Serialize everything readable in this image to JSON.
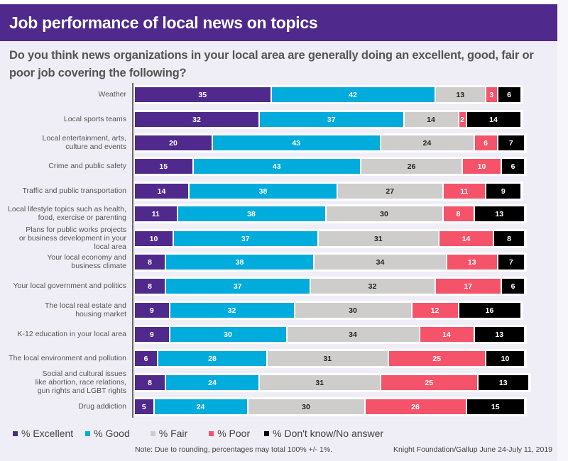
{
  "header": {
    "title": "Job performance of local news on topics"
  },
  "subtitle": "Do you think news organizations in your local area are generally doing an excellent, good, fair or poor job covering the following?",
  "chart_data": {
    "type": "bar",
    "orientation": "horizontal",
    "stacked": true,
    "categories": [
      "Weather",
      "Local sports teams",
      "Local entertainment, arts, culture and events",
      "Crime and public safety",
      "Traffic and public transportation",
      "Local lifestyle topics such as health, food, exercise or parenting",
      "Plans for public works projects or business development in your local area",
      "Your local economy and business climate",
      "Your local government and politics",
      "The local real estate and housing market",
      "K-12 education in your local area",
      "The local environment and pollution",
      "Social and cultural issues like abortion, race relations, gun rights and LGBT rights",
      "Drug addiction"
    ],
    "category_lines": [
      [
        "Weather"
      ],
      [
        "Local sports teams"
      ],
      [
        "Local entertainment, arts,",
        "culture and events"
      ],
      [
        "Crime and public safety"
      ],
      [
        "Traffic and public transportation"
      ],
      [
        "Local lifestyle topics such as health,",
        "food, exercise or parenting"
      ],
      [
        "Plans for public works projects",
        "or business development in your",
        "local area"
      ],
      [
        "Your local economy and",
        "business climate"
      ],
      [
        "Your local government and politics"
      ],
      [
        "The local real estate and",
        "housing market"
      ],
      [
        "K-12 education in your local area"
      ],
      [
        "The local environment and pollution"
      ],
      [
        "Social and cultural issues",
        "like abortion, race relations,",
        "gun rights and LGBT rights"
      ],
      [
        "Drug addiction"
      ]
    ],
    "series": [
      {
        "name": "% Excellent",
        "color": "#4f2a8c",
        "text_color": "#ffffff",
        "values": [
          35,
          32,
          20,
          15,
          14,
          11,
          10,
          8,
          8,
          9,
          9,
          6,
          8,
          5
        ]
      },
      {
        "name": "% Good",
        "color": "#00acdc",
        "text_color": "#ffffff",
        "values": [
          42,
          37,
          43,
          43,
          38,
          38,
          37,
          38,
          37,
          32,
          30,
          28,
          24,
          24
        ]
      },
      {
        "name": "% Fair",
        "color": "#cfcdcb",
        "text_color": "#222222",
        "values": [
          13,
          14,
          24,
          26,
          27,
          30,
          31,
          34,
          32,
          30,
          34,
          31,
          31,
          30
        ]
      },
      {
        "name": "% Poor",
        "color": "#f5536a",
        "text_color": "#ffffff",
        "values": [
          3,
          2,
          6,
          10,
          11,
          8,
          14,
          13,
          17,
          12,
          14,
          25,
          25,
          26
        ]
      },
      {
        "name": "% Don't know/No answer",
        "color": "#000000",
        "text_color": "#ffffff",
        "values": [
          6,
          14,
          7,
          6,
          9,
          13,
          8,
          7,
          6,
          16,
          13,
          10,
          13,
          15
        ]
      }
    ],
    "xlim": [
      0,
      100
    ],
    "grid": false,
    "legend_position": "bottom-left",
    "title": "Job performance of local news on topics"
  },
  "legend": [
    {
      "label": "% Excellent",
      "color": "#4f2a8c"
    },
    {
      "label": "% Good",
      "color": "#00acdc"
    },
    {
      "label": "% Fair",
      "color": "#cfcdcb"
    },
    {
      "label": "% Poor",
      "color": "#f5536a"
    },
    {
      "label": "% Don't know/No answer",
      "color": "#000000"
    }
  ],
  "note": "Note: Due to rounding, percentages may total 100% +/- 1%.",
  "source": "Knight Foundation/Gallup June 24-July 11, 2019"
}
